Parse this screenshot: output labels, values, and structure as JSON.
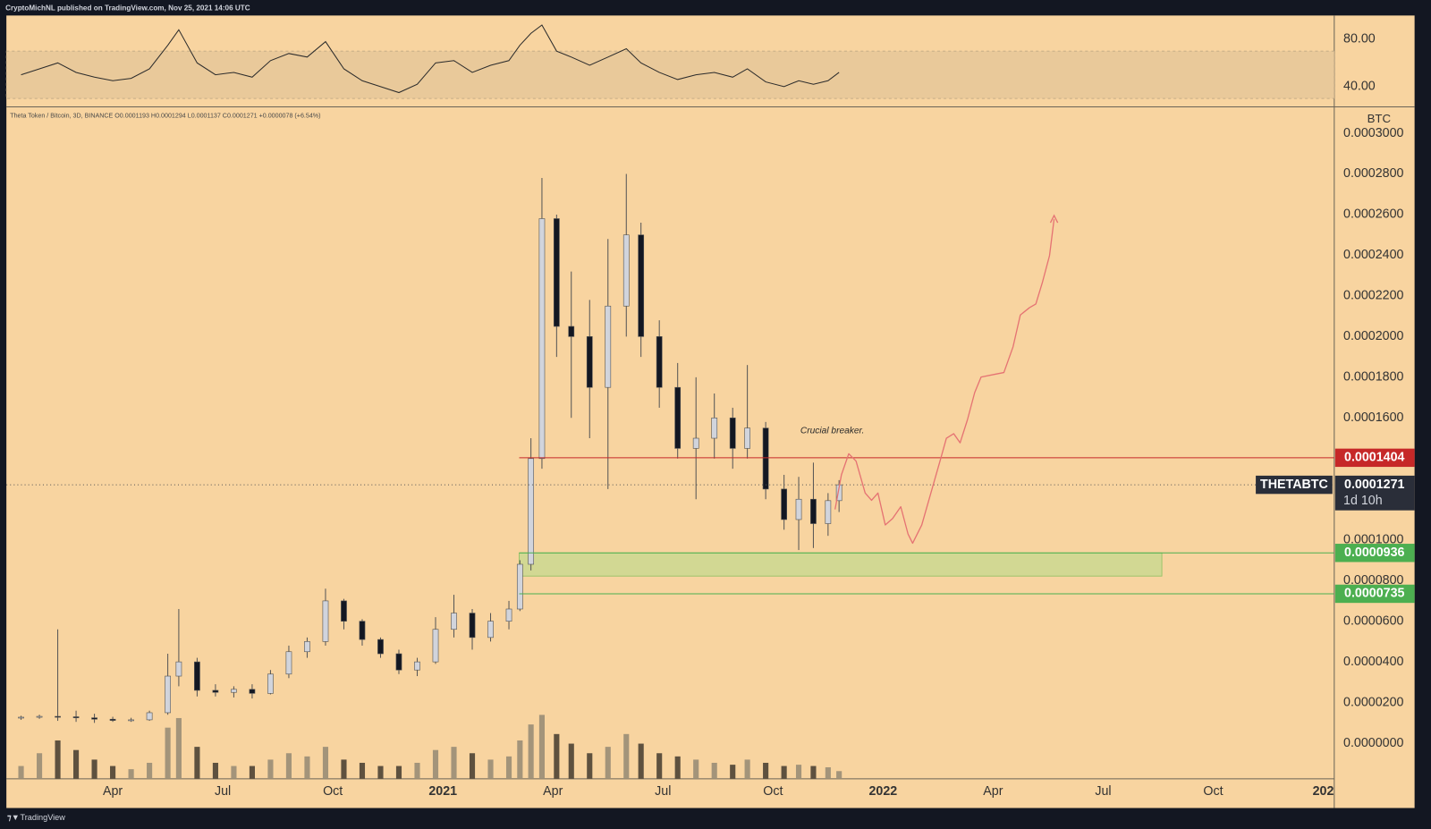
{
  "header": {
    "publisher": "CryptoMichNL published on TradingView.com, Nov 25, 2021 14:06 UTC"
  },
  "footer": {
    "brand": "TradingView"
  },
  "chart_data": {
    "type": "candlestick",
    "legend_text": "Theta Token / Bitcoin, 3D, BINANCE  O0.0001193  H0.0001294  L0.0001137  C0.0001271  +0.0000078 (+6.54%)",
    "y_unit": "BTC",
    "annotation": "Crucial breaker.",
    "x": [
      0.5,
      1,
      1.5,
      2,
      2.5,
      3,
      3.5,
      4,
      4.5,
      4.8,
      5.3,
      5.8,
      6.3,
      6.8,
      7.3,
      7.8,
      8.3,
      8.8,
      9.3,
      9.8,
      10.3,
      10.8,
      11.3,
      11.8,
      12.3,
      12.8,
      13.3,
      13.8,
      14.1,
      14.4,
      14.7,
      15.1,
      15.5,
      16,
      16.5,
      17,
      17.4,
      17.9,
      18.4,
      18.9,
      19.4,
      19.9,
      20.3,
      20.8,
      21.3,
      21.7,
      22.1,
      22.5,
      22.8
    ],
    "open": [
      1.25e-05,
      1.28e-05,
      1.32e-05,
      1.3e-05,
      1.25e-05,
      1.18e-05,
      1.12e-05,
      1.15e-05,
      1.5e-05,
      3.3e-05,
      4e-05,
      2.6e-05,
      2.5e-05,
      2.65e-05,
      2.45e-05,
      3.4e-05,
      4.5e-05,
      5e-05,
      7e-05,
      6e-05,
      5.1e-05,
      4.4e-05,
      3.6e-05,
      4e-05,
      5.6e-05,
      6.4e-05,
      5.2e-05,
      6e-05,
      6.6e-05,
      8.8e-05,
      0.00014,
      0.000258,
      0.000205,
      0.0002,
      0.000175,
      0.000215,
      0.00025,
      0.0002,
      0.000175,
      0.000145,
      0.00015,
      0.00016,
      0.000145,
      0.000155,
      0.000125,
      0.00011,
      0.00012,
      0.000108,
      0.0001193
    ],
    "high": [
      1.35e-05,
      1.4e-05,
      5.6e-05,
      1.6e-05,
      1.45e-05,
      1.3e-05,
      1.25e-05,
      1.6e-05,
      4.4e-05,
      6.6e-05,
      4.2e-05,
      2.9e-05,
      2.8e-05,
      2.9e-05,
      3.6e-05,
      4.8e-05,
      5.2e-05,
      7.6e-05,
      7.1e-05,
      6.1e-05,
      5.2e-05,
      4.6e-05,
      4.2e-05,
      6.2e-05,
      7.3e-05,
      6.6e-05,
      6.4e-05,
      7e-05,
      9e-05,
      0.00015,
      0.000278,
      0.00026,
      0.000232,
      0.000218,
      0.000248,
      0.00028,
      0.000256,
      0.000208,
      0.000187,
      0.00018,
      0.000172,
      0.000165,
      0.000186,
      0.000158,
      0.000132,
      0.000131,
      0.000138,
      0.000123,
      0.0001294
    ],
    "low": [
      1.15e-05,
      1.2e-05,
      1.1e-05,
      1.05e-05,
      1e-05,
      1.05e-05,
      1.05e-05,
      1.1e-05,
      1.4e-05,
      2.8e-05,
      2.3e-05,
      2.3e-05,
      2.25e-05,
      2.2e-05,
      2.4e-05,
      3.2e-05,
      4.2e-05,
      4.8e-05,
      5.6e-05,
      4.8e-05,
      4.2e-05,
      3.4e-05,
      3.3e-05,
      3.9e-05,
      5.2e-05,
      4.6e-05,
      5e-05,
      5.6e-05,
      6.5e-05,
      8.5e-05,
      0.000135,
      0.00019,
      0.00016,
      0.00015,
      0.000125,
      0.0002,
      0.00019,
      0.000165,
      0.00014,
      0.00012,
      0.00014,
      0.000135,
      0.00014,
      0.00012,
      0.000105,
      9.5e-05,
      9.6e-05,
      0.000102,
      0.0001137
    ],
    "close": [
      1.28e-05,
      1.32e-05,
      1.3e-05,
      1.25e-05,
      1.18e-05,
      1.12e-05,
      1.15e-05,
      1.5e-05,
      3.3e-05,
      4e-05,
      2.6e-05,
      2.5e-05,
      2.65e-05,
      2.45e-05,
      3.4e-05,
      4.5e-05,
      5e-05,
      7e-05,
      6e-05,
      5.1e-05,
      4.4e-05,
      3.6e-05,
      4e-05,
      5.6e-05,
      6.4e-05,
      5.2e-05,
      6e-05,
      6.6e-05,
      8.8e-05,
      0.00014,
      0.000258,
      0.000205,
      0.0002,
      0.000175,
      0.000215,
      0.00025,
      0.0002,
      0.000175,
      0.000145,
      0.00015,
      0.00016,
      0.000145,
      0.000155,
      0.000125,
      0.00011,
      0.00012,
      0.000108,
      0.0001193,
      0.0001271
    ],
    "volume": [
      20,
      40,
      60,
      45,
      30,
      20,
      15,
      25,
      80,
      95,
      50,
      25,
      20,
      20,
      30,
      40,
      35,
      50,
      30,
      25,
      20,
      20,
      25,
      45,
      50,
      40,
      30,
      35,
      60,
      85,
      100,
      70,
      55,
      40,
      50,
      70,
      55,
      40,
      35,
      30,
      25,
      22,
      30,
      25,
      20,
      22,
      20,
      18,
      12
    ],
    "up_color": "#d1d4dc",
    "down_color": "#131722",
    "volume_colors": [
      "#a3947a",
      "#5e513f"
    ],
    "xlim": [
      0.1,
      36.3
    ],
    "xticks": [
      {
        "value": 3,
        "label": "Apr"
      },
      {
        "value": 6,
        "label": "Jul"
      },
      {
        "value": 9,
        "label": "Oct"
      },
      {
        "value": 12,
        "label": "2021"
      },
      {
        "value": 15,
        "label": "Apr"
      },
      {
        "value": 18,
        "label": "Jul"
      },
      {
        "value": 21,
        "label": "Oct"
      },
      {
        "value": 24,
        "label": "2022"
      },
      {
        "value": 27,
        "label": "Apr"
      },
      {
        "value": 30,
        "label": "Jul"
      },
      {
        "value": 33,
        "label": "Oct"
      },
      {
        "value": 36,
        "label": "202"
      }
    ],
    "ylim": [
      -1.75e-05,
      0.000313
    ],
    "yticks": [
      {
        "value": 0,
        "label": "0.0000000"
      },
      {
        "value": 2e-05,
        "label": "0.0000200"
      },
      {
        "value": 4e-05,
        "label": "0.0000400"
      },
      {
        "value": 6e-05,
        "label": "0.0000600"
      },
      {
        "value": 8e-05,
        "label": "0.0000800"
      },
      {
        "value": 0.0001,
        "label": "0.0001000"
      },
      {
        "value": 0.00016,
        "label": "0.0001600"
      },
      {
        "value": 0.00018,
        "label": "0.0001800"
      },
      {
        "value": 0.0002,
        "label": "0.0002000"
      },
      {
        "value": 0.00022,
        "label": "0.0002200"
      },
      {
        "value": 0.00024,
        "label": "0.0002400"
      },
      {
        "value": 0.00026,
        "label": "0.0002600"
      },
      {
        "value": 0.00028,
        "label": "0.0002800"
      },
      {
        "value": 0.0003,
        "label": "0.0003000"
      }
    ],
    "levels": [
      {
        "value": 0.0001404,
        "color": "#c62828"
      },
      {
        "value": 9.36e-05,
        "color": "#4caf50"
      },
      {
        "value": 7.35e-05,
        "color": "#4caf50"
      }
    ],
    "zone": {
      "x": [
        14.08,
        31.6
      ],
      "y": [
        8.22e-05,
        9.36e-05
      ],
      "color": "#c8d890"
    },
    "last": {
      "symbol": "THETABTC",
      "value": 0.0001271,
      "countdown": "1d 10h"
    },
    "rsi": {
      "values": [
        50,
        55,
        60,
        52,
        48,
        45,
        47,
        55,
        75,
        88,
        60,
        50,
        52,
        48,
        62,
        68,
        65,
        78,
        55,
        45,
        40,
        35,
        42,
        60,
        62,
        52,
        58,
        62,
        75,
        85,
        92,
        70,
        65,
        58,
        65,
        72,
        60,
        52,
        46,
        50,
        52,
        48,
        55,
        44,
        40,
        45,
        42,
        45,
        52
      ],
      "ylim": [
        23,
        100
      ],
      "yticks": [
        {
          "value": 80,
          "label": "80.00"
        },
        {
          "value": 40,
          "label": "40.00"
        }
      ],
      "band": [
        30,
        70
      ],
      "color": "#2b2b2b"
    }
  }
}
